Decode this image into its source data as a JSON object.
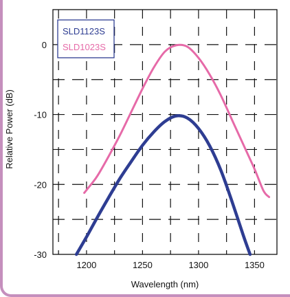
{
  "chart_data": {
    "type": "line",
    "title": "",
    "xlabel": "Wavelength (nm)",
    "ylabel": "Relative Power (dB)",
    "xlim": [
      1170,
      1370
    ],
    "ylim": [
      -30,
      5
    ],
    "x_ticks": [
      "1200",
      "1250",
      "1300",
      "1350"
    ],
    "x_tick_values": [
      1200,
      1250,
      1300,
      1350
    ],
    "y_ticks": [
      "0",
      "-10",
      "-20",
      "-30"
    ],
    "y_tick_values": [
      0,
      -10,
      -20,
      -30
    ],
    "grid": true,
    "grid_style": "dashed",
    "legend_position": "top-left",
    "series": [
      {
        "name": "SLD1123S",
        "color": "#2e3d92",
        "x": [
          1191,
          1200,
          1210,
          1220,
          1230,
          1240,
          1250,
          1260,
          1270,
          1280,
          1290,
          1300,
          1310,
          1320,
          1330,
          1340,
          1346
        ],
        "y": [
          -30,
          -27.5,
          -24.6,
          -21.8,
          -19.1,
          -16.7,
          -14.4,
          -12.5,
          -11.0,
          -10.2,
          -10.5,
          -12.0,
          -14.5,
          -18.0,
          -22.5,
          -27.3,
          -30
        ]
      },
      {
        "name": "SLD1023S",
        "color": "#e66aa8",
        "x": [
          1198,
          1201,
          1205,
          1210,
          1220,
          1230,
          1240,
          1250,
          1260,
          1270,
          1280,
          1290,
          1300,
          1310,
          1320,
          1330,
          1340,
          1350,
          1358,
          1363
        ],
        "y": [
          -21.2,
          -20.6,
          -19.8,
          -18.7,
          -15.9,
          -12.9,
          -9.6,
          -6.3,
          -3.3,
          -1.0,
          -0.1,
          -0.3,
          -1.9,
          -4.3,
          -7.3,
          -10.8,
          -14.3,
          -17.8,
          -20.9,
          -21.8
        ]
      }
    ]
  }
}
